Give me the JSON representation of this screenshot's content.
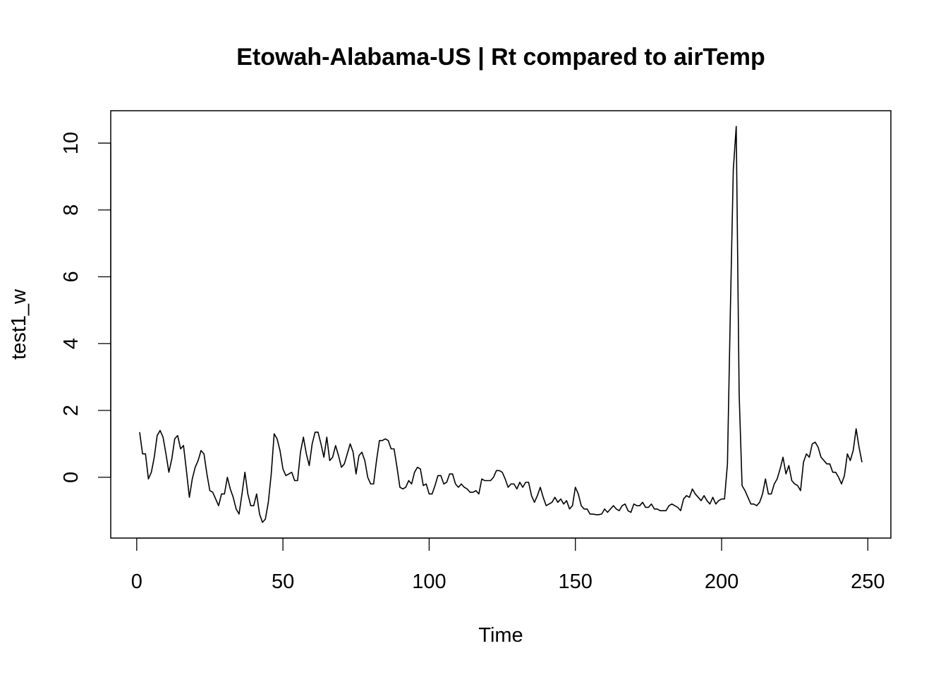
{
  "chart_data": {
    "type": "line",
    "title": "Etowah-Alabama-US | Rt compared to airTemp",
    "x_label": "Time",
    "y_label": "test1_w",
    "color": "#000000",
    "x": [
      1,
      2,
      3,
      4,
      5,
      6,
      7,
      8,
      9,
      10,
      11,
      12,
      13,
      14,
      15,
      16,
      17,
      18,
      19,
      20,
      21,
      22,
      23,
      24,
      25,
      26,
      27,
      28,
      29,
      30,
      31,
      32,
      33,
      34,
      35,
      36,
      37,
      38,
      39,
      40,
      41,
      42,
      43,
      44,
      45,
      46,
      47,
      48,
      49,
      50,
      51,
      52,
      53,
      54,
      55,
      56,
      57,
      58,
      59,
      60,
      61,
      62,
      63,
      64,
      65,
      66,
      67,
      68,
      69,
      70,
      71,
      72,
      73,
      74,
      75,
      76,
      77,
      78,
      79,
      80,
      81,
      82,
      83,
      84,
      85,
      86,
      87,
      88,
      89,
      90,
      91,
      92,
      93,
      94,
      95,
      96,
      97,
      98,
      99,
      100,
      101,
      102,
      103,
      104,
      105,
      106,
      107,
      108,
      109,
      110,
      111,
      112,
      113,
      114,
      115,
      116,
      117,
      118,
      119,
      120,
      121,
      122,
      123,
      124,
      125,
      126,
      127,
      128,
      129,
      130,
      131,
      132,
      133,
      134,
      135,
      136,
      137,
      138,
      139,
      140,
      141,
      142,
      143,
      144,
      145,
      146,
      147,
      148,
      149,
      150,
      151,
      152,
      153,
      154,
      155,
      156,
      157,
      158,
      159,
      160,
      161,
      162,
      163,
      164,
      165,
      166,
      167,
      168,
      169,
      170,
      171,
      172,
      173,
      174,
      175,
      176,
      177,
      178,
      179,
      180,
      181,
      182,
      183,
      184,
      185,
      186,
      187,
      188,
      189,
      190,
      191,
      192,
      193,
      194,
      195,
      196,
      197,
      198,
      199,
      200,
      201,
      202,
      203,
      204,
      205,
      206,
      207,
      208,
      209,
      210,
      211,
      212,
      213,
      214,
      215,
      216,
      217,
      218,
      219,
      220,
      221,
      222,
      223,
      224,
      225,
      226,
      227,
      228,
      229,
      230,
      231,
      232,
      233,
      234,
      235,
      236,
      237,
      238,
      239,
      240,
      241,
      242,
      243,
      244,
      245,
      246,
      247,
      248
    ],
    "values": [
      1.35,
      0.7,
      0.7,
      -0.05,
      0.15,
      0.6,
      1.25,
      1.4,
      1.2,
      0.7,
      0.15,
      0.55,
      1.15,
      1.25,
      0.85,
      0.95,
      0.2,
      -0.6,
      -0.05,
      0.3,
      0.5,
      0.8,
      0.7,
      0.1,
      -0.4,
      -0.45,
      -0.65,
      -0.85,
      -0.5,
      -0.5,
      0.0,
      -0.35,
      -0.6,
      -0.95,
      -1.1,
      -0.5,
      0.15,
      -0.5,
      -0.85,
      -0.85,
      -0.5,
      -1.1,
      -1.35,
      -1.25,
      -0.75,
      0.1,
      1.3,
      1.15,
      0.8,
      0.25,
      0.05,
      0.1,
      0.15,
      -0.1,
      -0.1,
      0.75,
      1.2,
      0.7,
      0.35,
      1.0,
      1.35,
      1.35,
      1.0,
      0.6,
      1.2,
      0.5,
      0.6,
      0.95,
      0.65,
      0.3,
      0.4,
      0.7,
      1.0,
      0.75,
      0.1,
      0.65,
      0.75,
      0.5,
      0.0,
      -0.2,
      -0.2,
      0.5,
      1.1,
      1.1,
      1.15,
      1.1,
      0.85,
      0.85,
      0.3,
      -0.3,
      -0.35,
      -0.3,
      -0.1,
      -0.2,
      0.15,
      0.3,
      0.25,
      -0.25,
      -0.2,
      -0.5,
      -0.5,
      -0.25,
      0.05,
      0.05,
      -0.2,
      -0.15,
      0.1,
      0.1,
      -0.2,
      -0.3,
      -0.2,
      -0.3,
      -0.35,
      -0.45,
      -0.45,
      -0.4,
      -0.5,
      -0.05,
      -0.1,
      -0.1,
      -0.1,
      0.0,
      0.2,
      0.2,
      0.15,
      -0.05,
      -0.3,
      -0.2,
      -0.2,
      -0.35,
      -0.15,
      -0.3,
      -0.15,
      -0.15,
      -0.55,
      -0.75,
      -0.55,
      -0.3,
      -0.6,
      -0.85,
      -0.8,
      -0.75,
      -0.6,
      -0.75,
      -0.65,
      -0.8,
      -0.7,
      -0.95,
      -0.85,
      -0.3,
      -0.5,
      -0.85,
      -0.95,
      -0.95,
      -1.1,
      -1.1,
      -1.12,
      -1.12,
      -1.1,
      -0.95,
      -1.05,
      -0.95,
      -0.85,
      -0.95,
      -1.0,
      -0.85,
      -0.8,
      -1.0,
      -1.05,
      -0.8,
      -0.85,
      -0.85,
      -0.75,
      -0.9,
      -0.9,
      -0.8,
      -0.95,
      -0.95,
      -1.0,
      -1.0,
      -1.0,
      -0.85,
      -0.8,
      -0.85,
      -0.9,
      -1.0,
      -0.65,
      -0.55,
      -0.6,
      -0.35,
      -0.5,
      -0.6,
      -0.7,
      -0.55,
      -0.7,
      -0.8,
      -0.6,
      -0.8,
      -0.7,
      -0.65,
      -0.65,
      0.4,
      5.0,
      9.2,
      10.5,
      2.5,
      -0.25,
      -0.4,
      -0.6,
      -0.8,
      -0.8,
      -0.85,
      -0.75,
      -0.5,
      -0.05,
      -0.5,
      -0.5,
      -0.2,
      -0.05,
      0.25,
      0.6,
      0.1,
      0.35,
      -0.1,
      -0.2,
      -0.25,
      -0.4,
      0.45,
      0.7,
      0.6,
      1.0,
      1.05,
      0.9,
      0.6,
      0.5,
      0.4,
      0.4,
      0.15,
      0.15,
      0.0,
      -0.2,
      0.05,
      0.7,
      0.5,
      0.8,
      1.45,
      0.9,
      0.45
    ],
    "xlim": [
      -8.88,
      257.88
    ],
    "ylim": [
      -1.82,
      10.97
    ],
    "xticks": [
      0,
      50,
      100,
      150,
      200,
      250
    ],
    "yticks": [
      0,
      2,
      4,
      6,
      8,
      10
    ],
    "grid": false
  }
}
